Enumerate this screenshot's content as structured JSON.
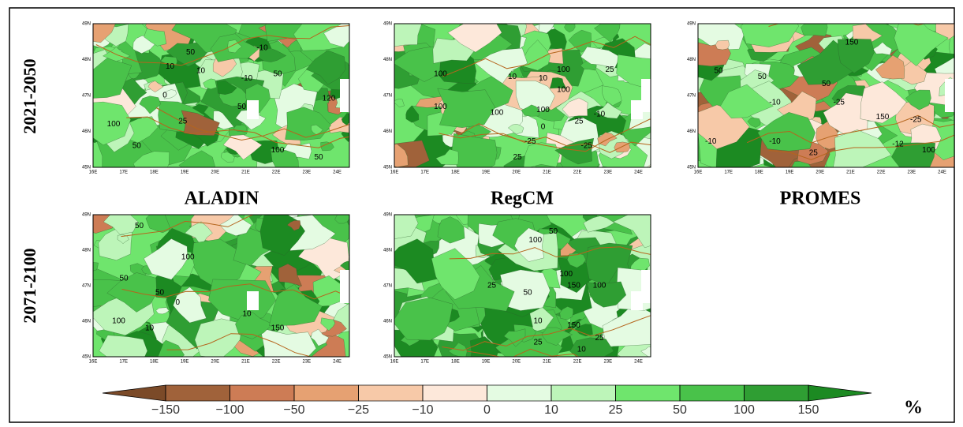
{
  "rows": [
    "2021-2050",
    "2071-2100"
  ],
  "models": [
    "ALADIN",
    "RegCM",
    "PROMES"
  ],
  "lon_labels": [
    "16E",
    "17E",
    "18E",
    "19E",
    "20E",
    "21E",
    "22E",
    "23E",
    "24E"
  ],
  "lat_labels": [
    "45N",
    "46N",
    "47N",
    "48N",
    "49N"
  ],
  "panels": [
    {
      "contour_labels": [
        "50",
        "-10",
        "10",
        "10",
        "-10",
        "50",
        "0",
        "50",
        "120",
        "100",
        "25",
        "50",
        "100",
        "50"
      ]
    },
    {
      "contour_labels": [
        "100",
        "10",
        "10",
        "100",
        "25",
        "100",
        "100",
        "100",
        "100",
        "0",
        "25",
        "-10",
        "-25",
        "25",
        "-25"
      ]
    },
    {
      "contour_labels": [
        "150",
        "50",
        "50",
        "50",
        "-10",
        "-25",
        "150",
        "-25",
        "-10",
        "-10",
        "25",
        "-12",
        "100"
      ]
    },
    {
      "contour_labels": [
        "50",
        "100",
        "50",
        "50",
        "0",
        "10",
        "100",
        "10",
        "150"
      ]
    },
    {
      "contour_labels": [
        "100",
        "50",
        "100",
        "25",
        "150",
        "50",
        "100",
        "10",
        "150",
        "25",
        "25",
        "10"
      ]
    }
  ],
  "colorbar": {
    "ticks": [
      {
        "value": -150,
        "label": "−150"
      },
      {
        "value": -100,
        "label": "−100"
      },
      {
        "value": -50,
        "label": "−50"
      },
      {
        "value": -25,
        "label": "−25"
      },
      {
        "value": -10,
        "label": "−10"
      },
      0,
      10,
      25,
      50,
      100,
      150
    ],
    "under_color": "#7b4a28",
    "colors": [
      "#a0623a",
      "#cd7c55",
      "#e6a172",
      "#f7c9a8",
      "#fde8da",
      "#e4fbe2",
      "#bdf5b9",
      "#6fe56d",
      "#49c24a",
      "#2f9e33"
    ],
    "over_color": "#1c8a22",
    "unit": "%"
  }
}
